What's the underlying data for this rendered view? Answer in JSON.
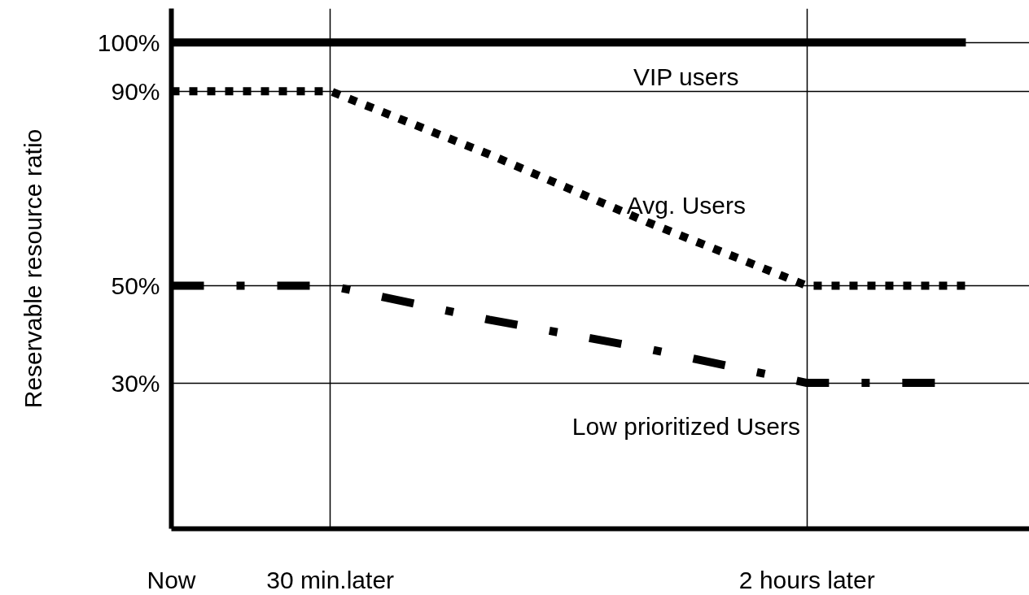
{
  "chart_data": {
    "type": "line",
    "ylabel": "Reservable resource ratio",
    "grid": true,
    "categories": [
      "Now",
      "30 min.later",
      null,
      null,
      "2 hours later",
      null
    ],
    "ylim": [
      0,
      107
    ],
    "yticks": [
      {
        "value": 30,
        "label": "30%"
      },
      {
        "value": 50,
        "label": "50%"
      },
      {
        "value": 90,
        "label": "90%"
      },
      {
        "value": 100,
        "label": "100%"
      }
    ],
    "series": [
      {
        "name": "VIP users",
        "color": "#000000",
        "values": [
          100,
          100,
          100,
          100,
          100,
          100
        ],
        "line_style": "solid"
      },
      {
        "name": "Avg. Users",
        "color": "#000000",
        "values": [
          90,
          90,
          77,
          63,
          50,
          50
        ],
        "line_style": "dotted"
      },
      {
        "name": "Low prioritized Users",
        "color": "#000000",
        "values": [
          50,
          50,
          43,
          37,
          30,
          30
        ],
        "line_style": "dashdot"
      }
    ]
  }
}
